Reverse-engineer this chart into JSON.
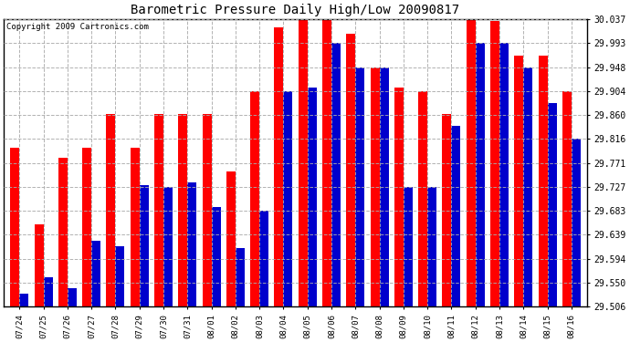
{
  "title": "Barometric Pressure Daily High/Low 20090817",
  "copyright": "Copyright 2009 Cartronics.com",
  "dates": [
    "07/24",
    "07/25",
    "07/26",
    "07/27",
    "07/28",
    "07/29",
    "07/30",
    "07/31",
    "08/01",
    "08/02",
    "08/03",
    "08/04",
    "08/05",
    "08/06",
    "08/07",
    "08/08",
    "08/09",
    "08/10",
    "08/11",
    "08/12",
    "08/13",
    "08/14",
    "08/15",
    "08/16"
  ],
  "highs": [
    29.8,
    29.658,
    29.78,
    29.8,
    29.862,
    29.8,
    29.862,
    29.862,
    29.862,
    29.756,
    29.904,
    30.022,
    30.037,
    30.037,
    30.01,
    29.948,
    29.91,
    29.904,
    29.862,
    30.037,
    30.033,
    29.97,
    29.97,
    29.904
  ],
  "lows": [
    29.53,
    29.56,
    29.54,
    29.628,
    29.618,
    29.73,
    29.727,
    29.735,
    29.69,
    29.615,
    29.683,
    29.904,
    29.91,
    29.993,
    29.948,
    29.948,
    29.727,
    29.727,
    29.84,
    29.992,
    29.993,
    29.948,
    29.882,
    29.816
  ],
  "ymin": 29.506,
  "ymax": 30.037,
  "yticks": [
    29.506,
    29.55,
    29.594,
    29.639,
    29.683,
    29.727,
    29.771,
    29.816,
    29.86,
    29.904,
    29.948,
    29.993,
    30.037
  ],
  "high_color": "#ff0000",
  "low_color": "#0000cc",
  "bg_color": "#ffffff",
  "grid_color": "#aaaaaa",
  "title_fontsize": 10,
  "copyright_fontsize": 6.5,
  "tick_fontsize": 6.5,
  "ytick_fontsize": 7
}
